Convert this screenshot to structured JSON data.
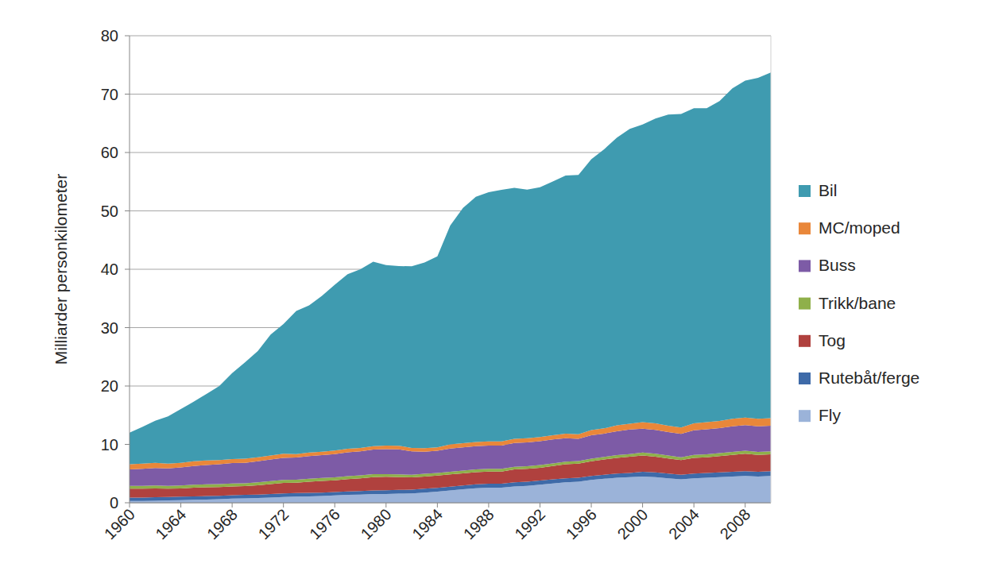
{
  "chart_data": {
    "type": "area",
    "stacked": true,
    "y_label": "Milliarder personkilometer",
    "x": [
      1960,
      1961,
      1962,
      1963,
      1964,
      1965,
      1966,
      1967,
      1968,
      1969,
      1970,
      1971,
      1972,
      1973,
      1974,
      1975,
      1976,
      1977,
      1978,
      1979,
      1980,
      1981,
      1982,
      1983,
      1984,
      1985,
      1986,
      1987,
      1988,
      1989,
      1990,
      1991,
      1992,
      1993,
      1994,
      1995,
      1996,
      1997,
      1998,
      1999,
      2000,
      2001,
      2002,
      2003,
      2004,
      2005,
      2006,
      2007,
      2008,
      2009,
      2010
    ],
    "xlim": [
      1960,
      2010
    ],
    "xticks": [
      1960,
      1964,
      1968,
      1972,
      1976,
      1980,
      1984,
      1988,
      1992,
      1996,
      2000,
      2004,
      2008
    ],
    "ylim": [
      0,
      80
    ],
    "yticks": [
      0,
      10,
      20,
      30,
      40,
      50,
      60,
      70,
      80
    ],
    "grid": true,
    "legend": "right",
    "series": [
      {
        "name": "Fly",
        "color": "#9bb3d9",
        "values": [
          0.3,
          0.3,
          0.35,
          0.4,
          0.45,
          0.5,
          0.55,
          0.6,
          0.7,
          0.75,
          0.8,
          0.9,
          1.0,
          1.05,
          1.1,
          1.15,
          1.25,
          1.35,
          1.4,
          1.5,
          1.5,
          1.55,
          1.6,
          1.75,
          1.9,
          2.1,
          2.3,
          2.5,
          2.6,
          2.6,
          2.8,
          2.9,
          3.1,
          3.3,
          3.5,
          3.6,
          3.9,
          4.1,
          4.3,
          4.4,
          4.5,
          4.4,
          4.2,
          4.0,
          4.2,
          4.3,
          4.4,
          4.5,
          4.6,
          4.5,
          4.6
        ]
      },
      {
        "name": "Rutebåt/ferge",
        "color": "#3e6aa8",
        "values": [
          0.6,
          0.6,
          0.6,
          0.6,
          0.6,
          0.6,
          0.6,
          0.6,
          0.6,
          0.6,
          0.6,
          0.6,
          0.6,
          0.6,
          0.6,
          0.6,
          0.6,
          0.6,
          0.6,
          0.6,
          0.65,
          0.65,
          0.65,
          0.65,
          0.65,
          0.65,
          0.65,
          0.65,
          0.65,
          0.65,
          0.7,
          0.7,
          0.7,
          0.7,
          0.7,
          0.7,
          0.7,
          0.7,
          0.7,
          0.7,
          0.8,
          0.8,
          0.8,
          0.8,
          0.8,
          0.8,
          0.8,
          0.8,
          0.8,
          0.8,
          0.8
        ]
      },
      {
        "name": "Tog",
        "color": "#b0413e",
        "values": [
          1.5,
          1.5,
          1.5,
          1.4,
          1.4,
          1.5,
          1.5,
          1.5,
          1.5,
          1.5,
          1.6,
          1.7,
          1.8,
          1.8,
          1.9,
          2.0,
          2.0,
          2.1,
          2.2,
          2.3,
          2.3,
          2.2,
          2.1,
          2.1,
          2.1,
          2.1,
          2.1,
          2.1,
          2.1,
          2.1,
          2.2,
          2.2,
          2.2,
          2.3,
          2.4,
          2.4,
          2.5,
          2.6,
          2.7,
          2.8,
          2.8,
          2.7,
          2.6,
          2.5,
          2.7,
          2.7,
          2.8,
          2.9,
          3.0,
          2.9,
          2.9
        ]
      },
      {
        "name": "Trikk/bane",
        "color": "#8fb04a",
        "values": [
          0.5,
          0.5,
          0.5,
          0.5,
          0.5,
          0.5,
          0.5,
          0.5,
          0.5,
          0.5,
          0.5,
          0.5,
          0.5,
          0.5,
          0.5,
          0.5,
          0.5,
          0.5,
          0.5,
          0.5,
          0.45,
          0.45,
          0.45,
          0.45,
          0.45,
          0.45,
          0.45,
          0.45,
          0.45,
          0.45,
          0.45,
          0.45,
          0.45,
          0.45,
          0.45,
          0.45,
          0.45,
          0.45,
          0.45,
          0.45,
          0.5,
          0.5,
          0.5,
          0.5,
          0.5,
          0.5,
          0.5,
          0.5,
          0.5,
          0.5,
          0.5
        ]
      },
      {
        "name": "Buss",
        "color": "#7d5ba6",
        "values": [
          2.8,
          2.9,
          3.0,
          3.0,
          3.1,
          3.2,
          3.3,
          3.4,
          3.5,
          3.5,
          3.6,
          3.7,
          3.8,
          3.8,
          3.9,
          3.9,
          4.0,
          4.1,
          4.1,
          4.2,
          4.3,
          4.3,
          4.0,
          3.8,
          3.8,
          4.0,
          4.0,
          4.0,
          4.0,
          4.0,
          4.1,
          4.1,
          4.1,
          4.1,
          4.0,
          3.8,
          4.0,
          4.0,
          4.1,
          4.2,
          4.1,
          4.1,
          4.0,
          4.0,
          4.2,
          4.3,
          4.3,
          4.4,
          4.4,
          4.4,
          4.4
        ]
      },
      {
        "name": "MC/moped",
        "color": "#e9873a",
        "values": [
          0.9,
          0.9,
          0.9,
          0.8,
          0.8,
          0.8,
          0.8,
          0.7,
          0.7,
          0.7,
          0.7,
          0.7,
          0.7,
          0.6,
          0.6,
          0.6,
          0.6,
          0.6,
          0.6,
          0.6,
          0.6,
          0.6,
          0.6,
          0.6,
          0.6,
          0.7,
          0.7,
          0.7,
          0.7,
          0.7,
          0.7,
          0.7,
          0.7,
          0.7,
          0.8,
          0.8,
          0.9,
          0.9,
          1.0,
          1.0,
          1.1,
          1.1,
          1.1,
          1.1,
          1.2,
          1.2,
          1.2,
          1.3,
          1.3,
          1.3,
          1.3
        ]
      },
      {
        "name": "Bil",
        "color": "#3f9bb0",
        "values": [
          5.4,
          6.3,
          7.2,
          8.1,
          9.2,
          10.2,
          11.4,
          12.7,
          14.7,
          16.5,
          18.2,
          20.7,
          22.2,
          24.5,
          25.2,
          26.7,
          28.4,
          29.9,
          30.6,
          31.6,
          30.9,
          30.8,
          31.1,
          31.8,
          32.7,
          37.5,
          40.3,
          42.0,
          42.7,
          43.1,
          43.0,
          42.6,
          42.8,
          43.5,
          44.2,
          44.4,
          46.4,
          47.8,
          49.3,
          50.5,
          51.0,
          52.2,
          53.3,
          53.7,
          54.0,
          53.8,
          54.8,
          56.6,
          57.7,
          58.4,
          59.2
        ]
      }
    ]
  }
}
